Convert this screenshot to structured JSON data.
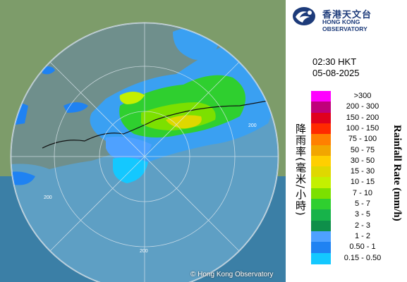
{
  "org": {
    "name_zh": "香港天文台",
    "name_en": "HONG KONG OBSERVATORY"
  },
  "time": "02:30 HKT",
  "date": "05-08-2025",
  "credit": "© Hong Kong Observatory",
  "range_labels": [
    "200",
    "200",
    "200"
  ],
  "legend": {
    "title_zh": "降雨率(毫米/小時)",
    "title_en": "Rainfall Rate (mm/h)",
    "items": [
      {
        "label": ">300",
        "color": "#ff00ff"
      },
      {
        "label": "200 - 300",
        "color": "#c0007a"
      },
      {
        "label": "150 - 200",
        "color": "#e0001e"
      },
      {
        "label": "100 - 150",
        "color": "#ff2a00"
      },
      {
        "label": "75 - 100",
        "color": "#ff8000"
      },
      {
        "label": "50 - 75",
        "color": "#f2a600"
      },
      {
        "label": "30 - 50",
        "color": "#ffcf00"
      },
      {
        "label": "15 - 30",
        "color": "#dfd800"
      },
      {
        "label": "10 - 15",
        "color": "#c4f000"
      },
      {
        "label": "7 - 10",
        "color": "#7ce000"
      },
      {
        "label": "5 - 7",
        "color": "#2fcf2f"
      },
      {
        "label": "3 - 5",
        "color": "#17b34a"
      },
      {
        "label": "2 - 3",
        "color": "#0e8f4a"
      },
      {
        "label": "1 - 2",
        "color": "#4ea1ff"
      },
      {
        "label": "0.50 - 1",
        "color": "#1f82f2"
      },
      {
        "label": "0.15 - 0.50",
        "color": "#14c8ff"
      }
    ]
  }
}
